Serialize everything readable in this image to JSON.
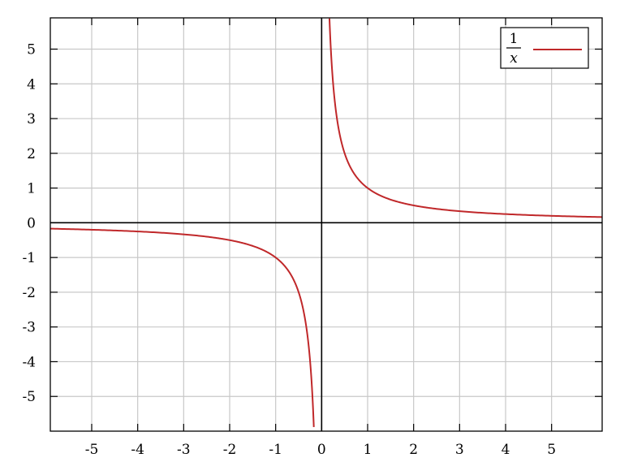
{
  "chart_data": {
    "type": "line",
    "title": "",
    "xlabel": "",
    "ylabel": "",
    "xlim": [
      -5.9,
      6.1
    ],
    "ylim": [
      -6.0,
      5.9
    ],
    "x_ticks": [
      {
        "value": -5,
        "label": "-5"
      },
      {
        "value": -4,
        "label": "-4"
      },
      {
        "value": -3,
        "label": "-3"
      },
      {
        "value": -2,
        "label": "-2"
      },
      {
        "value": -1,
        "label": "-1"
      },
      {
        "value": 0,
        "label": "0"
      },
      {
        "value": 1,
        "label": "1"
      },
      {
        "value": 2,
        "label": "2"
      },
      {
        "value": 3,
        "label": "3"
      },
      {
        "value": 4,
        "label": "4"
      },
      {
        "value": 5,
        "label": "5"
      }
    ],
    "y_ticks": [
      {
        "value": 5,
        "label": "5"
      },
      {
        "value": 4,
        "label": "4"
      },
      {
        "value": 3,
        "label": "3"
      },
      {
        "value": 2,
        "label": "2"
      },
      {
        "value": 1,
        "label": "1"
      },
      {
        "value": 0,
        "label": "0"
      },
      {
        "value": -1,
        "label": "-1"
      },
      {
        "value": -2,
        "label": "-2"
      },
      {
        "value": -3,
        "label": "-3"
      },
      {
        "value": -4,
        "label": "-4"
      },
      {
        "value": -5,
        "label": "-5"
      }
    ],
    "grid": true,
    "legend": {
      "placement": "top-right",
      "entries": [
        {
          "numerator": "1",
          "denominator": "x",
          "color": "#c0282a"
        }
      ]
    },
    "series": [
      {
        "function": "1/x",
        "color": "#c0282a",
        "branches": [
          {
            "x": [
              -5.9,
              -5,
              -4,
              -3,
              -2,
              -1.5,
              -1,
              -0.75,
              -0.5,
              -0.4,
              -0.3,
              -0.25,
              -0.2,
              -0.17
            ],
            "y": [
              -0.169,
              -0.2,
              -0.25,
              -0.333,
              -0.5,
              -0.667,
              -1,
              -1.333,
              -2,
              -2.5,
              -3.333,
              -4,
              -5,
              -5.88
            ]
          },
          {
            "x": [
              0.17,
              0.2,
              0.25,
              0.3,
              0.4,
              0.5,
              0.75,
              1,
              1.5,
              2,
              3,
              4,
              5,
              6.1
            ],
            "y": [
              5.88,
              5,
              4,
              3.333,
              2.5,
              2,
              1.333,
              1,
              0.667,
              0.5,
              0.333,
              0.25,
              0.2,
              0.164
            ]
          }
        ]
      }
    ]
  },
  "colors": {
    "grid": "#c8c8c8",
    "axis": "#000000",
    "frame": "#000000",
    "curve": "#c0282a",
    "background": "#ffffff"
  }
}
